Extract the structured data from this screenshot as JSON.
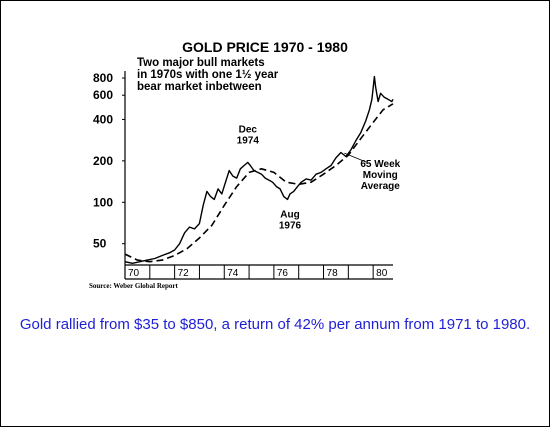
{
  "chart_data": {
    "type": "line",
    "title": "GOLD PRICE 1970 - 1980",
    "subtitle": [
      "Two major bull markets",
      "in 1970s with one 1½ year",
      "bear market inbetween"
    ],
    "source": "Source: Weber Global Report",
    "y_scale": "log",
    "ylim": [
      35,
      900
    ],
    "y_ticks": [
      {
        "value": 50,
        "label": "50"
      },
      {
        "value": 100,
        "label": "100"
      },
      {
        "value": 200,
        "label": "200"
      },
      {
        "value": 400,
        "label": "400"
      },
      {
        "value": 600,
        "label": "600"
      },
      {
        "value": 800,
        "label": "800"
      }
    ],
    "xlim": [
      1970,
      1980.8
    ],
    "x_ticks": [
      {
        "value": 1970,
        "label": "70"
      },
      {
        "value": 1972,
        "label": "72"
      },
      {
        "value": 1974,
        "label": "74"
      },
      {
        "value": 1976,
        "label": "76"
      },
      {
        "value": 1978,
        "label": "78"
      },
      {
        "value": 1980,
        "label": "80"
      }
    ],
    "series": [
      {
        "style": "solid",
        "x": [
          1970.0,
          1970.3,
          1970.6,
          1970.9,
          1971.2,
          1971.5,
          1971.8,
          1972.0,
          1972.2,
          1972.4,
          1972.6,
          1972.8,
          1973.0,
          1973.15,
          1973.3,
          1973.45,
          1973.6,
          1973.75,
          1973.9,
          1974.05,
          1974.2,
          1974.35,
          1974.5,
          1974.65,
          1974.8,
          1974.95,
          1975.05,
          1975.2,
          1975.35,
          1975.5,
          1975.65,
          1975.8,
          1975.95,
          1976.1,
          1976.25,
          1976.4,
          1976.55,
          1976.65,
          1976.8,
          1976.95,
          1977.1,
          1977.3,
          1977.5,
          1977.7,
          1977.9,
          1978.1,
          1978.3,
          1978.5,
          1978.7,
          1978.9,
          1979.1,
          1979.3,
          1979.5,
          1979.7,
          1979.85,
          1979.95,
          1980.05,
          1980.1,
          1980.2,
          1980.3,
          1980.45,
          1980.6,
          1980.75,
          1980.8
        ],
        "y": [
          37,
          36,
          37,
          38,
          39,
          41,
          43,
          45,
          50,
          60,
          66,
          64,
          70,
          95,
          120,
          110,
          105,
          125,
          115,
          140,
          170,
          155,
          150,
          175,
          185,
          195,
          185,
          170,
          165,
          160,
          150,
          145,
          140,
          130,
          125,
          110,
          105,
          115,
          120,
          130,
          140,
          148,
          145,
          160,
          165,
          175,
          185,
          210,
          230,
          215,
          240,
          280,
          320,
          390,
          470,
          560,
          820,
          690,
          540,
          620,
          580,
          560,
          540,
          560
        ]
      },
      {
        "name": "65 Week Moving Average",
        "style": "dashed",
        "x": [
          1970.0,
          1970.5,
          1971.0,
          1971.5,
          1972.0,
          1972.5,
          1973.0,
          1973.5,
          1974.0,
          1974.5,
          1975.0,
          1975.5,
          1976.0,
          1976.5,
          1977.0,
          1977.5,
          1978.0,
          1978.5,
          1979.0,
          1979.5,
          1980.0,
          1980.4,
          1980.8
        ],
        "y": [
          42,
          38,
          37,
          38,
          41,
          46,
          55,
          68,
          95,
          130,
          165,
          175,
          165,
          140,
          135,
          140,
          160,
          185,
          220,
          290,
          380,
          470,
          520
        ]
      }
    ],
    "annotations": [
      {
        "lines": [
          "Dec",
          "1974"
        ],
        "x": 1974.95,
        "y": 195
      },
      {
        "lines": [
          "Aug",
          "1976"
        ],
        "x": 1976.65,
        "y": 105
      },
      {
        "lines": [
          "65 Week",
          "Moving",
          "Average"
        ],
        "x": 1979.0,
        "y": 220
      }
    ]
  },
  "caption": "Gold rallied from $35 to $850, a return of 42% per annum from 1971 to 1980."
}
